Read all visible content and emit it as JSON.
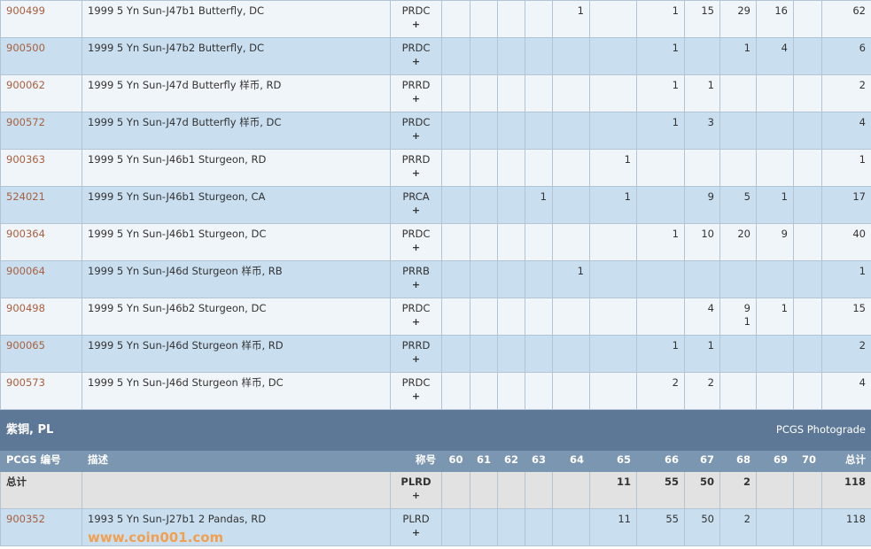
{
  "grades": [
    "60",
    "61",
    "62",
    "63",
    "64",
    "65",
    "66",
    "67",
    "68",
    "69",
    "70"
  ],
  "rows": [
    {
      "code": "900499",
      "desc": "1999 5 Yn Sun-J47b1 Butterfly, DC",
      "designation": "PRDC",
      "plus": "+",
      "counts": [
        "",
        "",
        "",
        "",
        "1",
        "",
        "1",
        "15",
        "29",
        "16",
        ""
      ],
      "total": "62"
    },
    {
      "code": "900500",
      "desc": "1999 5 Yn Sun-J47b2 Butterfly, DC",
      "designation": "PRDC",
      "plus": "+",
      "counts": [
        "",
        "",
        "",
        "",
        "",
        "",
        "1",
        "",
        "1",
        "4",
        ""
      ],
      "total": "6"
    },
    {
      "code": "900062",
      "desc": "1999 5 Yn Sun-J47d Butterfly 样币, RD",
      "designation": "PRRD",
      "plus": "+",
      "counts": [
        "",
        "",
        "",
        "",
        "",
        "",
        "1",
        "1",
        "",
        "",
        ""
      ],
      "total": "2"
    },
    {
      "code": "900572",
      "desc": "1999 5 Yn Sun-J47d Butterfly 样币, DC",
      "designation": "PRDC",
      "plus": "+",
      "counts": [
        "",
        "",
        "",
        "",
        "",
        "",
        "1",
        "3",
        "",
        "",
        ""
      ],
      "total": "4"
    },
    {
      "code": "900363",
      "desc": "1999 5 Yn Sun-J46b1 Sturgeon, RD",
      "designation": "PRRD",
      "plus": "+",
      "counts": [
        "",
        "",
        "",
        "",
        "",
        "1",
        "",
        "",
        "",
        "",
        ""
      ],
      "total": "1"
    },
    {
      "code": "524021",
      "desc": "1999 5 Yn Sun-J46b1 Sturgeon, CA",
      "designation": "PRCA",
      "plus": "+",
      "counts": [
        "",
        "",
        "",
        "1",
        "",
        "1",
        "",
        "9",
        "5",
        "1",
        ""
      ],
      "total": "17"
    },
    {
      "code": "900364",
      "desc": "1999 5 Yn Sun-J46b1 Sturgeon, DC",
      "designation": "PRDC",
      "plus": "+",
      "counts": [
        "",
        "",
        "",
        "",
        "",
        "",
        "1",
        "10",
        "20",
        "9",
        ""
      ],
      "total": "40"
    },
    {
      "code": "900064",
      "desc": "1999 5 Yn Sun-J46d Sturgeon 样币, RB",
      "designation": "PRRB",
      "plus": "+",
      "counts": [
        "",
        "",
        "",
        "",
        "1",
        "",
        "",
        "",
        "",
        "",
        ""
      ],
      "total": "1"
    },
    {
      "code": "900498",
      "desc": "1999 5 Yn Sun-J46b2 Sturgeon, DC",
      "designation": "PRDC",
      "plus": "+",
      "counts": [
        "",
        "",
        "",
        "",
        "",
        "",
        "",
        "4",
        "9\n1",
        "1",
        ""
      ],
      "total": "15"
    },
    {
      "code": "900065",
      "desc": "1999 5 Yn Sun-J46d Sturgeon 样币, RD",
      "designation": "PRRD",
      "plus": "+",
      "counts": [
        "",
        "",
        "",
        "",
        "",
        "",
        "1",
        "1",
        "",
        "",
        ""
      ],
      "total": "2"
    },
    {
      "code": "900573",
      "desc": "1999 5 Yn Sun-J46d Sturgeon 样币, DC",
      "designation": "PRDC",
      "plus": "+",
      "counts": [
        "",
        "",
        "",
        "",
        "",
        "",
        "2",
        "2",
        "",
        "",
        ""
      ],
      "total": "4"
    }
  ],
  "section": {
    "title": "紫铜, PL",
    "right": "PCGS Photograde"
  },
  "header": {
    "code": "PCGS 编号",
    "desc": "描述",
    "designation": "称号",
    "total": "总计"
  },
  "total_row": {
    "label": "总计",
    "designation": "PLRD",
    "plus": "+",
    "counts": [
      "",
      "",
      "",
      "",
      "",
      "11",
      "55",
      "50",
      "2",
      "",
      ""
    ],
    "total": "118"
  },
  "pl_rows": [
    {
      "code": "900352",
      "desc": "1993 5 Yn Sun-J27b1 2 Pandas, RD",
      "designation": "PLRD",
      "plus": "+",
      "counts": [
        "",
        "",
        "",
        "",
        "",
        "11",
        "55",
        "50",
        "2",
        "",
        ""
      ],
      "total": "118"
    }
  ],
  "watermark": "www.coin001.com",
  "colors": {
    "link": "#a8603f",
    "row_light": "#f0f5fa",
    "row_blue": "#c9dff0",
    "section": "#5d7896",
    "header": "#7b96b0"
  }
}
